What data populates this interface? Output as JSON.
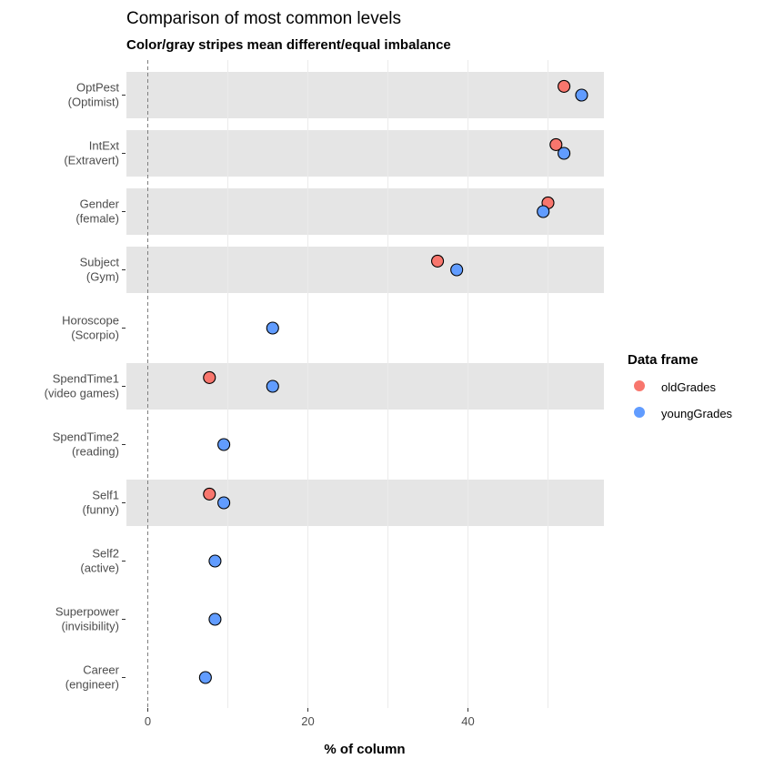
{
  "chart_data": {
    "type": "scatter",
    "title": "Comparison of most common levels",
    "subtitle": "Color/gray stripes mean different/equal imbalance",
    "xlabel": "% of column",
    "ylabel": "",
    "xlim": [
      0,
      57
    ],
    "x_ticks": [
      0,
      20,
      40
    ],
    "reference_line_x": 0,
    "grid": true,
    "legend": {
      "title": "Data frame",
      "position": "right"
    },
    "categories": [
      {
        "line1": "OptPest",
        "line2": "(Optimist)",
        "stripe": true
      },
      {
        "line1": "IntExt",
        "line2": "(Extravert)",
        "stripe": true
      },
      {
        "line1": "Gender",
        "line2": "(female)",
        "stripe": true
      },
      {
        "line1": "Subject",
        "line2": "(Gym)",
        "stripe": true
      },
      {
        "line1": "Horoscope",
        "line2": "(Scorpio)",
        "stripe": false
      },
      {
        "line1": "SpendTime1",
        "line2": "(video games)",
        "stripe": true
      },
      {
        "line1": "SpendTime2",
        "line2": "(reading)",
        "stripe": false
      },
      {
        "line1": "Self1",
        "line2": "(funny)",
        "stripe": true
      },
      {
        "line1": "Self2",
        "line2": "(active)",
        "stripe": false
      },
      {
        "line1": "Superpower",
        "line2": "(invisibility)",
        "stripe": false
      },
      {
        "line1": "Career",
        "line2": "(engineer)",
        "stripe": false
      }
    ],
    "series": [
      {
        "name": "oldGrades",
        "color": "#f8766d",
        "values": [
          52.0,
          51.0,
          50.0,
          36.2,
          null,
          7.7,
          null,
          7.7,
          null,
          null,
          null
        ]
      },
      {
        "name": "youngGrades",
        "color": "#619cff",
        "values": [
          54.2,
          52.0,
          49.4,
          38.6,
          15.6,
          15.6,
          9.5,
          9.5,
          8.4,
          8.4,
          7.2
        ]
      }
    ],
    "stripe_color": "#e5e5e5",
    "gridline_color": "#ebebeb"
  }
}
